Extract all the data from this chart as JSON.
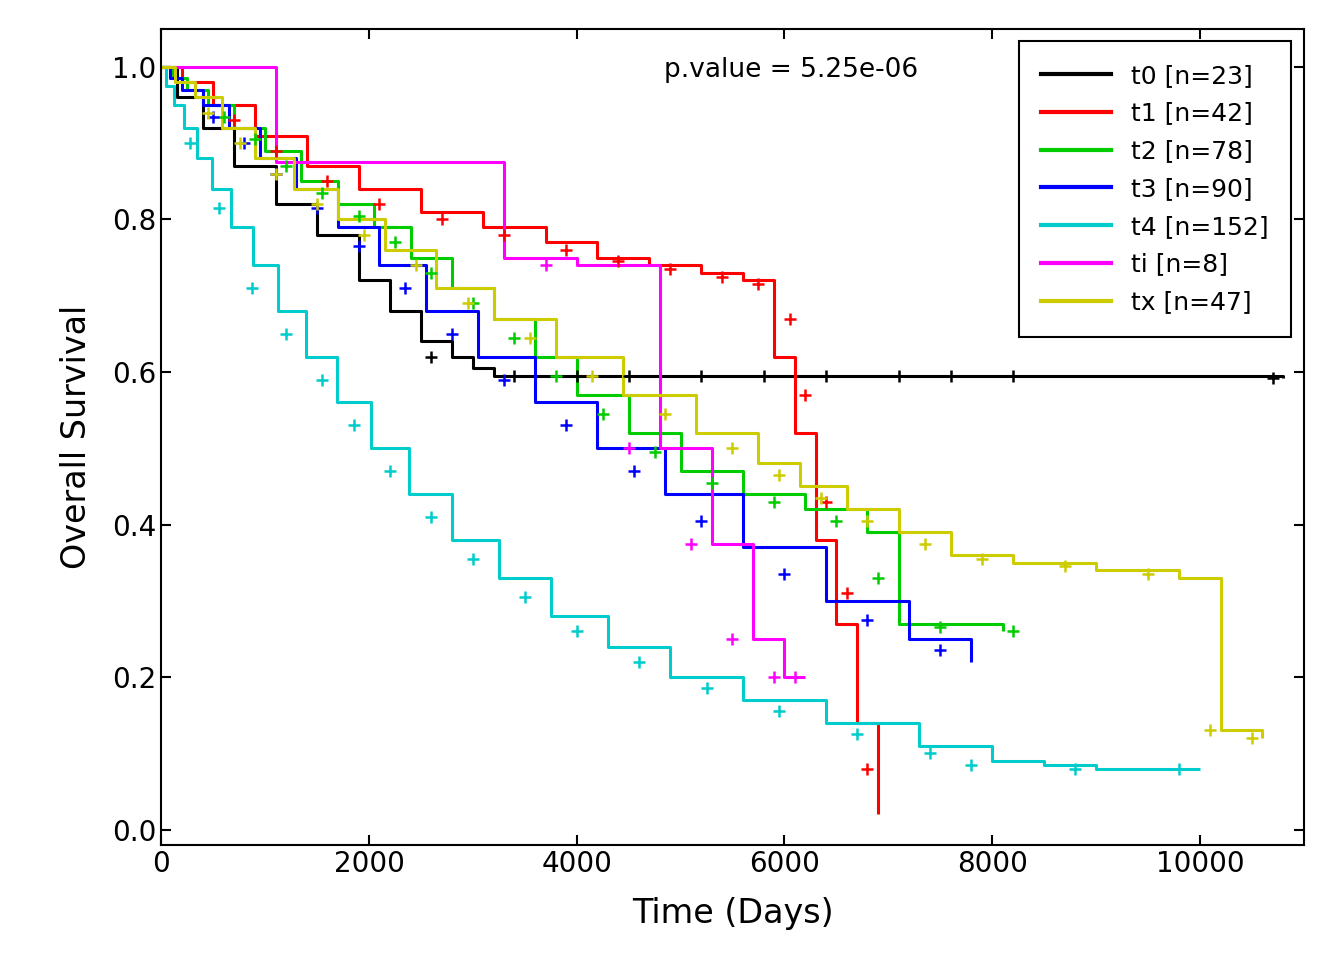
{
  "title": "",
  "xlabel": "Time (Days)",
  "ylabel": "Overall Survival",
  "pvalue_text": "p.value = 5.25e-06",
  "xlim": [
    0,
    11000
  ],
  "ylim": [
    -0.02,
    1.05
  ],
  "xticks": [
    0,
    2000,
    4000,
    6000,
    8000,
    10000
  ],
  "yticks": [
    0.0,
    0.2,
    0.4,
    0.6,
    0.8,
    1.0
  ],
  "groups_order": [
    "t0",
    "t1",
    "t2",
    "t3",
    "t4",
    "ti",
    "tx"
  ],
  "groups": {
    "t0": {
      "color": "#000000",
      "n": 23,
      "label": "t0 [n=23]",
      "times": [
        0,
        150,
        400,
        700,
        1100,
        1500,
        1900,
        2200,
        2500,
        2800,
        3000,
        3200,
        10800
      ],
      "surv": [
        1.0,
        0.96,
        0.92,
        0.87,
        0.82,
        0.78,
        0.72,
        0.68,
        0.64,
        0.62,
        0.605,
        0.595,
        0.592
      ],
      "censor_t": [
        2600,
        3400,
        4000,
        4500,
        5200,
        5800,
        6400,
        7100,
        7600,
        8200,
        10700
      ],
      "censor_s": [
        0.62,
        0.595,
        0.595,
        0.595,
        0.595,
        0.595,
        0.595,
        0.595,
        0.595,
        0.595,
        0.592
      ]
    },
    "t1": {
      "color": "#FF0000",
      "n": 42,
      "label": "t1 [n=42]",
      "times": [
        0,
        200,
        500,
        900,
        1400,
        1900,
        2500,
        3100,
        3700,
        4200,
        4700,
        5200,
        5600,
        5900,
        6100,
        6300,
        6500,
        6700,
        6900
      ],
      "surv": [
        1.0,
        0.98,
        0.95,
        0.91,
        0.87,
        0.84,
        0.81,
        0.79,
        0.77,
        0.75,
        0.74,
        0.73,
        0.72,
        0.62,
        0.52,
        0.38,
        0.27,
        0.14,
        0.02
      ],
      "censor_t": [
        700,
        1100,
        1600,
        2100,
        2700,
        3300,
        3900,
        4400,
        4900,
        5400,
        5750,
        6050,
        6200,
        6400,
        6600,
        6800
      ],
      "censor_s": [
        0.93,
        0.89,
        0.85,
        0.82,
        0.8,
        0.78,
        0.76,
        0.745,
        0.735,
        0.725,
        0.715,
        0.67,
        0.57,
        0.43,
        0.31,
        0.08
      ]
    },
    "t2": {
      "color": "#00CC00",
      "n": 78,
      "label": "t2 [n=78]",
      "times": [
        0,
        100,
        250,
        450,
        700,
        1000,
        1350,
        1700,
        2050,
        2400,
        2800,
        3200,
        3600,
        4000,
        4500,
        5000,
        5600,
        6200,
        6800,
        7100,
        8100
      ],
      "surv": [
        1.0,
        0.985,
        0.97,
        0.95,
        0.92,
        0.89,
        0.85,
        0.82,
        0.79,
        0.75,
        0.71,
        0.67,
        0.62,
        0.57,
        0.52,
        0.47,
        0.44,
        0.42,
        0.39,
        0.27,
        0.26
      ],
      "censor_t": [
        600,
        900,
        1200,
        1550,
        1900,
        2250,
        2600,
        3000,
        3400,
        3800,
        4250,
        4750,
        5300,
        5900,
        6500,
        6900,
        7500,
        8200
      ],
      "censor_s": [
        0.935,
        0.905,
        0.87,
        0.835,
        0.805,
        0.77,
        0.73,
        0.69,
        0.645,
        0.595,
        0.545,
        0.495,
        0.455,
        0.43,
        0.405,
        0.33,
        0.265,
        0.26
      ]
    },
    "t3": {
      "color": "#0000FF",
      "n": 90,
      "label": "t3 [n=90]",
      "times": [
        0,
        80,
        200,
        400,
        650,
        950,
        1300,
        1700,
        2100,
        2550,
        3050,
        3600,
        4200,
        4850,
        5600,
        6400,
        7200,
        7800
      ],
      "surv": [
        1.0,
        0.985,
        0.97,
        0.95,
        0.92,
        0.88,
        0.84,
        0.79,
        0.74,
        0.68,
        0.62,
        0.56,
        0.5,
        0.44,
        0.37,
        0.3,
        0.25,
        0.22
      ],
      "censor_t": [
        500,
        800,
        1100,
        1500,
        1900,
        2350,
        2800,
        3300,
        3900,
        4550,
        5200,
        6000,
        6800,
        7500
      ],
      "censor_s": [
        0.935,
        0.9,
        0.86,
        0.815,
        0.765,
        0.71,
        0.65,
        0.59,
        0.53,
        0.47,
        0.405,
        0.335,
        0.275,
        0.235
      ]
    },
    "t4": {
      "color": "#00CCCC",
      "n": 152,
      "label": "t4 [n=152]",
      "times": [
        0,
        50,
        120,
        220,
        340,
        490,
        670,
        880,
        1120,
        1390,
        1690,
        2020,
        2390,
        2800,
        3250,
        3750,
        4300,
        4900,
        5600,
        6400,
        7300,
        8000,
        8500,
        9000,
        9500,
        10000
      ],
      "surv": [
        1.0,
        0.975,
        0.95,
        0.92,
        0.88,
        0.84,
        0.79,
        0.74,
        0.68,
        0.62,
        0.56,
        0.5,
        0.44,
        0.38,
        0.33,
        0.28,
        0.24,
        0.2,
        0.17,
        0.14,
        0.11,
        0.09,
        0.085,
        0.08,
        0.08,
        0.08
      ],
      "censor_t": [
        280,
        560,
        870,
        1200,
        1550,
        1860,
        2200,
        2600,
        3000,
        3500,
        4000,
        4600,
        5250,
        5950,
        6700,
        7400,
        7800,
        8800,
        9800
      ],
      "censor_s": [
        0.9,
        0.815,
        0.71,
        0.65,
        0.59,
        0.53,
        0.47,
        0.41,
        0.355,
        0.305,
        0.26,
        0.22,
        0.185,
        0.155,
        0.125,
        0.1,
        0.085,
        0.08,
        0.08
      ]
    },
    "ti": {
      "color": "#FF00FF",
      "n": 8,
      "label": "ti [n=8]",
      "times": [
        0,
        300,
        700,
        1100,
        1600,
        2100,
        2700,
        3300,
        4000,
        4800,
        5300,
        5700,
        6000,
        6200
      ],
      "surv": [
        1.0,
        1.0,
        1.0,
        0.875,
        0.875,
        0.875,
        0.875,
        0.75,
        0.74,
        0.5,
        0.375,
        0.25,
        0.2,
        0.2
      ],
      "censor_t": [
        3700,
        4500,
        5100,
        5500,
        5900,
        6100
      ],
      "censor_s": [
        0.74,
        0.5,
        0.375,
        0.25,
        0.2,
        0.2
      ]
    },
    "tx": {
      "color": "#CCCC00",
      "n": 47,
      "label": "tx [n=47]",
      "times": [
        0,
        130,
        320,
        580,
        900,
        1280,
        1700,
        2150,
        2650,
        3200,
        3800,
        4450,
        5150,
        5750,
        6150,
        6600,
        7100,
        7600,
        8200,
        9000,
        9800,
        10200,
        10600
      ],
      "surv": [
        1.0,
        0.98,
        0.96,
        0.92,
        0.88,
        0.84,
        0.8,
        0.76,
        0.71,
        0.67,
        0.62,
        0.57,
        0.52,
        0.48,
        0.45,
        0.42,
        0.39,
        0.36,
        0.35,
        0.34,
        0.33,
        0.13,
        0.12
      ],
      "censor_t": [
        450,
        760,
        1100,
        1500,
        1950,
        2450,
        2950,
        3550,
        4150,
        4850,
        5500,
        5950,
        6350,
        6800,
        7350,
        7900,
        8700,
        9500,
        10100,
        10500
      ],
      "censor_s": [
        0.94,
        0.9,
        0.86,
        0.82,
        0.78,
        0.74,
        0.69,
        0.645,
        0.595,
        0.545,
        0.5,
        0.465,
        0.435,
        0.405,
        0.375,
        0.355,
        0.345,
        0.335,
        0.13,
        0.12
      ]
    }
  },
  "legend_loc": "upper right",
  "background_color": "#FFFFFF",
  "axis_fontsize": 24,
  "tick_fontsize": 20,
  "legend_fontsize": 18,
  "pvalue_fontsize": 19,
  "line_width": 2.2
}
